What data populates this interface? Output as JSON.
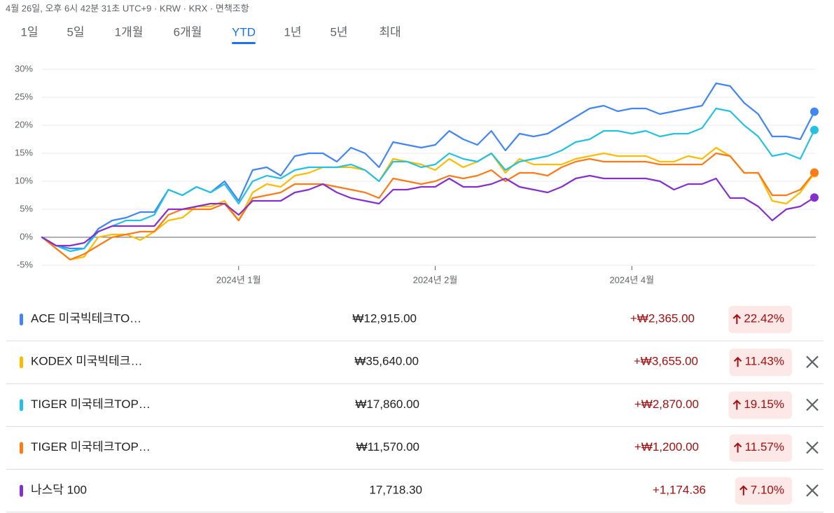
{
  "header": {
    "info": "4월 26일, 오후 6시 42분 31초 UTC+9 · KRW · KRX · 면책조항"
  },
  "tabs": {
    "items": [
      "1일",
      "5일",
      "1개월",
      "6개월",
      "YTD",
      "1년",
      "5년",
      "최대"
    ],
    "active": 4
  },
  "chart_data": {
    "type": "line",
    "categories": [
      null,
      null,
      null,
      null,
      null,
      null,
      null,
      null,
      null,
      null,
      null,
      null,
      null,
      null,
      "2024년 1월",
      null,
      null,
      null,
      null,
      null,
      null,
      null,
      null,
      null,
      null,
      null,
      null,
      null,
      "2024년 2월",
      null,
      null,
      null,
      null,
      null,
      null,
      null,
      null,
      null,
      null,
      null,
      null,
      null,
      "2024년 4월",
      null,
      null,
      null,
      null,
      null,
      null,
      null,
      null,
      null,
      null,
      null,
      null,
      null
    ],
    "ylim": [
      -5,
      30
    ],
    "yticks": [
      {
        "value": -5,
        "label": "-5%"
      },
      {
        "value": 0,
        "label": "0%"
      },
      {
        "value": 5,
        "label": "5%"
      },
      {
        "value": 10,
        "label": "10%"
      },
      {
        "value": 15,
        "label": "15%"
      },
      {
        "value": 20,
        "label": "20%"
      },
      {
        "value": 25,
        "label": "25%"
      },
      {
        "value": 30,
        "label": "30%"
      }
    ],
    "grid": true,
    "series": [
      {
        "name": "ACE 미국빅테크TO…",
        "color": "#4285f4",
        "values": [
          0,
          -1.5,
          -2,
          -2,
          1.5,
          3,
          3.5,
          4.5,
          4.5,
          8.5,
          7.5,
          9,
          8,
          10,
          6.5,
          12,
          12.5,
          11,
          14.5,
          15,
          15,
          13.5,
          16,
          15,
          12.5,
          17,
          16.5,
          16,
          16.5,
          19,
          17.5,
          16.5,
          19,
          15.5,
          18.5,
          18,
          18.5,
          20,
          21.5,
          23,
          23.5,
          22.5,
          23,
          23,
          22,
          22.5,
          23,
          23.5,
          27.5,
          27,
          24,
          22,
          18,
          18,
          17.5,
          22.42
        ]
      },
      {
        "name": "KODEX 미국빅테크…",
        "color": "#fbbc04",
        "values": [
          0,
          -2,
          -4,
          -3.5,
          0,
          0.5,
          0.5,
          -0.5,
          1,
          3,
          3.5,
          5.5,
          5.5,
          6.5,
          3,
          8,
          9.5,
          9,
          11,
          11.5,
          12.5,
          12.5,
          12.5,
          12,
          10,
          14,
          13.5,
          13,
          12,
          14,
          12.5,
          13.5,
          15,
          11.5,
          14,
          13,
          13,
          13,
          14,
          14.5,
          15,
          14.5,
          14.5,
          14.5,
          13.5,
          13.5,
          14.5,
          14,
          16,
          14.5,
          11.5,
          11.5,
          6.5,
          6,
          8,
          11.43
        ]
      },
      {
        "name": "TIGER 미국테크TOP…",
        "color": "#24c1e0",
        "values": [
          0,
          -1.5,
          -2.5,
          -2,
          1,
          2,
          3,
          3,
          4,
          8.5,
          7.5,
          9,
          8,
          9.5,
          6,
          10,
          11,
          10.5,
          12,
          12.5,
          12.5,
          12.5,
          13,
          12,
          10,
          13.5,
          13.5,
          12.5,
          13,
          15,
          14,
          13.5,
          15,
          12,
          13.5,
          14,
          14.5,
          15.5,
          17,
          17.5,
          19,
          19,
          18.5,
          19,
          18,
          18.5,
          18.5,
          19.5,
          23,
          22.5,
          20,
          18,
          14.5,
          15,
          14,
          19.15
        ]
      },
      {
        "name": "TIGER 미국테크TOP…",
        "color": "#fa7b17",
        "values": [
          0,
          -2,
          -4,
          -3,
          -1.5,
          0,
          0.5,
          1,
          1,
          4,
          5,
          5,
          5,
          6,
          3,
          7,
          7.5,
          8,
          9.5,
          9.5,
          9.5,
          9,
          8.5,
          8,
          7,
          10.5,
          10,
          9.5,
          10,
          11,
          10.5,
          11,
          12,
          10,
          11.5,
          11.5,
          11,
          12.5,
          13.5,
          14,
          13.5,
          13.5,
          13.5,
          13.5,
          13,
          13,
          13,
          13,
          15,
          14.5,
          11.5,
          11.5,
          7.5,
          7.5,
          8.5,
          11.57
        ]
      },
      {
        "name": "나스닥 100",
        "color": "#8430ce",
        "values": [
          0,
          -1.5,
          -1.5,
          -1,
          1,
          2,
          2,
          2,
          2,
          5,
          5,
          5.5,
          6,
          6,
          4,
          6.5,
          6.5,
          6.5,
          8,
          8.5,
          9.5,
          8,
          7,
          6.5,
          6,
          8.5,
          8.5,
          9,
          9,
          10.5,
          9,
          9,
          9.5,
          10.5,
          9,
          8.5,
          8,
          9,
          10.5,
          11,
          10.5,
          10.5,
          10.5,
          10.5,
          10,
          8.5,
          9.5,
          9.5,
          10.5,
          7,
          7,
          5.5,
          3,
          5,
          5.5,
          7.1
        ]
      }
    ]
  },
  "rows": [
    {
      "price": "₩12,915.00",
      "change": "+₩2,365.00",
      "pct": "22.42%"
    },
    {
      "price": "₩35,640.00",
      "change": "+₩3,655.00",
      "pct": "11.43%"
    },
    {
      "price": "₩17,860.00",
      "change": "+₩2,870.00",
      "pct": "19.15%"
    },
    {
      "price": "₩11,570.00",
      "change": "+₩1,200.00",
      "pct": "11.57%"
    },
    {
      "price": "17,718.30",
      "change": "+1,174.36",
      "pct": "7.10%"
    }
  ]
}
